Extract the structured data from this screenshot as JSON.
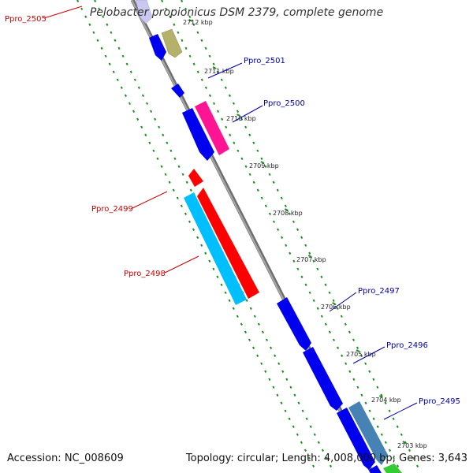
{
  "title": "Pelobacter propionicus DSM 2379, complete genome",
  "footer": {
    "accession": "Accession: NC_008609",
    "summary": "Topology: circular; Length: 4,008,000 bp; Genes: 3,643"
  },
  "ticks": [
    "2712 kbp",
    "2711 kbp",
    "2710 kbp",
    "2709 kbp",
    "2708 kbp",
    "2707 kbp",
    "2706 kbp",
    "2705 kbp",
    "2704 kbp",
    "2703 kbp"
  ],
  "gene_labels": [
    {
      "text": "Ppro_2505",
      "color": "#cc0000"
    },
    {
      "text": "Ppro_2501",
      "color": "#0000aa"
    },
    {
      "text": "Ppro_2500",
      "color": "#0000aa"
    },
    {
      "text": "Ppro_2499",
      "color": "#cc0000"
    },
    {
      "text": "Ppro_2498",
      "color": "#cc0000"
    },
    {
      "text": "Ppro_2497",
      "color": "#0000aa"
    },
    {
      "text": "Ppro_2496",
      "color": "#0000aa"
    },
    {
      "text": "Ppro_2495",
      "color": "#0000aa"
    }
  ],
  "colors": {
    "backbone": "#808080",
    "grid": "#1e8c1e",
    "forward_gene": "#0000ee",
    "reverse_gene": "#ff0000",
    "magenta_gene": "#ff1493",
    "olive_gene": "#b5b06a",
    "cyan_gene": "#00bfff",
    "steel_gene": "#4682b4",
    "green_gene": "#33cc33",
    "lavender_gene": "#c8c8f0"
  }
}
